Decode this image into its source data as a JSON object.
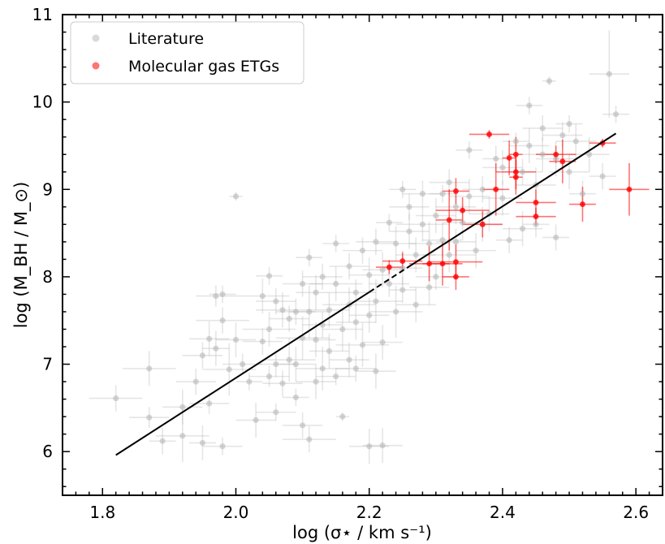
{
  "chart_data": {
    "type": "scatter",
    "xlabel": "log (σ⋆ / km s⁻¹)",
    "ylabel": "log (M_BH / M_⊙)",
    "xlim": [
      1.74,
      2.64
    ],
    "ylim": [
      5.5,
      11.0
    ],
    "x_ticks": [
      "1.8",
      "2.0",
      "2.2",
      "2.4",
      "2.6"
    ],
    "y_ticks": [
      "6",
      "7",
      "8",
      "9",
      "10",
      "11"
    ],
    "legend_position": "top-left",
    "fit_line": {
      "x_start": 1.82,
      "y_start": 5.96,
      "x_end": 2.57,
      "y_end": 9.64,
      "dashed_from": 2.2,
      "dashed_to": 2.26,
      "color": "#000000"
    },
    "series": [
      {
        "name": "Literature",
        "color": "#b4b4b4",
        "points": [
          [
            1.82,
            6.61,
            0.04,
            0.15
          ],
          [
            1.87,
            6.39,
            0.03,
            0.12
          ],
          [
            1.87,
            6.95,
            0.04,
            0.2
          ],
          [
            1.89,
            6.12,
            0.02,
            0.15
          ],
          [
            1.92,
            6.51,
            0.03,
            0.2
          ],
          [
            1.92,
            6.18,
            0.04,
            0.3
          ],
          [
            1.94,
            6.8,
            0.03,
            0.15
          ],
          [
            1.95,
            6.1,
            0.02,
            0.2
          ],
          [
            1.95,
            7.1,
            0.03,
            0.15
          ],
          [
            1.96,
            7.29,
            0.03,
            0.2
          ],
          [
            1.96,
            6.55,
            0.03,
            0.12
          ],
          [
            1.97,
            7.18,
            0.02,
            0.2
          ],
          [
            1.97,
            7.78,
            0.03,
            0.12
          ],
          [
            1.98,
            6.06,
            0.03,
            0.1
          ],
          [
            1.98,
            7.5,
            0.04,
            0.15
          ],
          [
            1.98,
            7.8,
            0.02,
            0.1
          ],
          [
            1.99,
            6.94,
            0.04,
            0.3
          ],
          [
            2.0,
            7.28,
            0.03,
            0.2
          ],
          [
            2.0,
            8.92,
            0.01,
            0.05
          ],
          [
            2.01,
            7.0,
            0.03,
            0.12
          ],
          [
            2.02,
            6.8,
            0.02,
            0.1
          ],
          [
            2.03,
            6.36,
            0.03,
            0.2
          ],
          [
            2.04,
            7.26,
            0.03,
            0.15
          ],
          [
            2.04,
            7.78,
            0.04,
            0.2
          ],
          [
            2.05,
            6.86,
            0.03,
            0.12
          ],
          [
            2.05,
            7.4,
            0.04,
            0.2
          ],
          [
            2.05,
            8.01,
            0.02,
            0.1
          ],
          [
            2.06,
            6.45,
            0.03,
            0.1
          ],
          [
            2.06,
            7.0,
            0.03,
            0.15
          ],
          [
            2.06,
            7.72,
            0.03,
            0.15
          ],
          [
            2.07,
            6.78,
            0.03,
            0.15
          ],
          [
            2.07,
            7.62,
            0.04,
            0.2
          ],
          [
            2.08,
            7.05,
            0.04,
            0.25
          ],
          [
            2.08,
            7.52,
            0.03,
            0.15
          ],
          [
            2.09,
            6.62,
            0.02,
            0.1
          ],
          [
            2.09,
            7.0,
            0.03,
            0.2
          ],
          [
            2.09,
            7.6,
            0.03,
            0.15
          ],
          [
            2.1,
            6.3,
            0.03,
            0.15
          ],
          [
            2.1,
            7.3,
            0.04,
            0.25
          ],
          [
            2.1,
            7.92,
            0.03,
            0.15
          ],
          [
            2.11,
            6.14,
            0.04,
            0.15
          ],
          [
            2.11,
            7.6,
            0.03,
            0.3
          ],
          [
            2.11,
            8.22,
            0.02,
            0.1
          ],
          [
            2.12,
            6.8,
            0.03,
            0.2
          ],
          [
            2.12,
            7.28,
            0.03,
            0.2
          ],
          [
            2.12,
            7.82,
            0.03,
            0.2
          ],
          [
            2.13,
            6.95,
            0.04,
            0.25
          ],
          [
            2.13,
            7.45,
            0.03,
            0.15
          ],
          [
            2.13,
            8.0,
            0.03,
            0.15
          ],
          [
            2.14,
            7.15,
            0.03,
            0.2
          ],
          [
            2.14,
            7.62,
            0.03,
            0.2
          ],
          [
            2.15,
            6.86,
            0.03,
            0.1
          ],
          [
            2.15,
            7.92,
            0.04,
            0.2
          ],
          [
            2.15,
            8.38,
            0.02,
            0.1
          ],
          [
            2.16,
            7.4,
            0.03,
            0.25
          ],
          [
            2.16,
            6.4,
            0.01,
            0.05
          ],
          [
            2.17,
            7.05,
            0.03,
            0.2
          ],
          [
            2.17,
            7.68,
            0.04,
            0.2
          ],
          [
            2.17,
            8.12,
            0.03,
            0.15
          ],
          [
            2.18,
            6.95,
            0.03,
            0.15
          ],
          [
            2.18,
            7.48,
            0.03,
            0.2
          ],
          [
            2.18,
            7.82,
            0.03,
            0.15
          ],
          [
            2.19,
            7.22,
            0.04,
            0.25
          ],
          [
            2.19,
            8.3,
            0.03,
            0.15
          ],
          [
            2.2,
            6.06,
            0.03,
            0.2
          ],
          [
            2.2,
            7.56,
            0.03,
            0.2
          ],
          [
            2.2,
            8.02,
            0.03,
            0.2
          ],
          [
            2.21,
            6.92,
            0.03,
            0.2
          ],
          [
            2.21,
            7.72,
            0.04,
            0.25
          ],
          [
            2.21,
            8.4,
            0.03,
            0.15
          ],
          [
            2.22,
            6.07,
            0.03,
            0.2
          ],
          [
            2.22,
            7.25,
            0.03,
            0.2
          ],
          [
            2.22,
            8.08,
            0.03,
            0.2
          ],
          [
            2.23,
            7.92,
            0.03,
            0.15
          ],
          [
            2.23,
            8.62,
            0.02,
            0.1
          ],
          [
            2.24,
            7.6,
            0.04,
            0.3
          ],
          [
            2.24,
            8.38,
            0.03,
            0.2
          ],
          [
            2.25,
            9.0,
            0.02,
            0.1
          ],
          [
            2.25,
            8.1,
            0.03,
            0.2
          ],
          [
            2.25,
            7.85,
            0.02,
            0.15
          ],
          [
            2.26,
            8.52,
            0.03,
            0.2
          ],
          [
            2.26,
            8.8,
            0.03,
            0.15
          ],
          [
            2.27,
            7.68,
            0.03,
            0.2
          ],
          [
            2.27,
            8.25,
            0.03,
            0.2
          ],
          [
            2.28,
            8.6,
            0.04,
            0.2
          ],
          [
            2.28,
            8.95,
            0.03,
            0.15
          ],
          [
            2.29,
            7.88,
            0.03,
            0.2
          ],
          [
            2.29,
            8.38,
            0.03,
            0.25
          ],
          [
            2.3,
            8.0,
            0.03,
            0.15
          ],
          [
            2.3,
            8.7,
            0.03,
            0.2
          ],
          [
            2.31,
            8.42,
            0.03,
            0.2
          ],
          [
            2.31,
            8.95,
            0.02,
            0.1
          ],
          [
            2.32,
            9.08,
            0.03,
            0.15
          ],
          [
            2.32,
            8.25,
            0.04,
            0.2
          ],
          [
            2.33,
            8.8,
            0.03,
            0.2
          ],
          [
            2.33,
            8.4,
            0.03,
            0.15
          ],
          [
            2.34,
            8.62,
            0.03,
            0.2
          ],
          [
            2.35,
            9.45,
            0.02,
            0.1
          ],
          [
            2.35,
            8.92,
            0.03,
            0.2
          ],
          [
            2.36,
            8.3,
            0.03,
            0.2
          ],
          [
            2.37,
            8.6,
            0.03,
            0.2
          ],
          [
            2.37,
            9.0,
            0.03,
            0.15
          ],
          [
            2.38,
            8.72,
            0.03,
            0.2
          ],
          [
            2.39,
            9.35,
            0.02,
            0.15
          ],
          [
            2.4,
            9.25,
            0.03,
            0.2
          ],
          [
            2.4,
            8.9,
            0.03,
            0.2
          ],
          [
            2.41,
            8.42,
            0.02,
            0.15
          ],
          [
            2.42,
            9.55,
            0.02,
            0.1
          ],
          [
            2.43,
            8.55,
            0.03,
            0.2
          ],
          [
            2.43,
            9.2,
            0.03,
            0.15
          ],
          [
            2.44,
            9.96,
            0.02,
            0.1
          ],
          [
            2.44,
            9.5,
            0.03,
            0.2
          ],
          [
            2.45,
            9.05,
            0.03,
            0.2
          ],
          [
            2.45,
            8.6,
            0.02,
            0.15
          ],
          [
            2.46,
            9.4,
            0.03,
            0.2
          ],
          [
            2.46,
            9.7,
            0.03,
            0.15
          ],
          [
            2.47,
            10.24,
            0.01,
            0.05
          ],
          [
            2.48,
            9.35,
            0.03,
            0.2
          ],
          [
            2.48,
            8.45,
            0.02,
            0.15
          ],
          [
            2.49,
            9.62,
            0.03,
            0.15
          ],
          [
            2.5,
            9.2,
            0.03,
            0.2
          ],
          [
            2.5,
            9.75,
            0.02,
            0.1
          ],
          [
            2.51,
            9.55,
            0.03,
            0.2
          ],
          [
            2.52,
            8.95,
            0.02,
            0.15
          ],
          [
            2.53,
            9.4,
            0.03,
            0.2
          ],
          [
            2.55,
            9.15,
            0.02,
            0.15
          ],
          [
            2.56,
            10.32,
            0.03,
            0.5
          ],
          [
            2.57,
            9.86,
            0.02,
            0.1
          ]
        ]
      },
      {
        "name": "Molecular gas ETGs",
        "color": "#ff0000",
        "points": [
          [
            2.23,
            8.11,
            0.02,
            0.08
          ],
          [
            2.25,
            8.18,
            0.03,
            0.1
          ],
          [
            2.29,
            8.15,
            0.03,
            0.2
          ],
          [
            2.31,
            8.15,
            0.03,
            0.25
          ],
          [
            2.32,
            8.65,
            0.02,
            0.35
          ],
          [
            2.33,
            8.98,
            0.02,
            0.15
          ],
          [
            2.33,
            8.0,
            0.02,
            0.15
          ],
          [
            2.33,
            8.17,
            0.04,
            0.2
          ],
          [
            2.34,
            8.76,
            0.04,
            0.15
          ],
          [
            2.37,
            8.6,
            0.03,
            0.15
          ],
          [
            2.38,
            9.63,
            0.03,
            0.05
          ],
          [
            2.39,
            9.0,
            0.02,
            0.3
          ],
          [
            2.41,
            9.36,
            0.01,
            0.2
          ],
          [
            2.42,
            9.2,
            0.03,
            0.2
          ],
          [
            2.42,
            9.14,
            0.01,
            0.2
          ],
          [
            2.42,
            9.4,
            0.01,
            0.2
          ],
          [
            2.45,
            8.85,
            0.03,
            0.15
          ],
          [
            2.45,
            8.69,
            0.03,
            0.1
          ],
          [
            2.48,
            9.4,
            0.03,
            0.1
          ],
          [
            2.49,
            9.32,
            0.02,
            0.25
          ],
          [
            2.52,
            8.83,
            0.02,
            0.2
          ],
          [
            2.55,
            9.53,
            0.02,
            0.05
          ],
          [
            2.59,
            9.0,
            0.03,
            0.3
          ]
        ]
      }
    ]
  }
}
